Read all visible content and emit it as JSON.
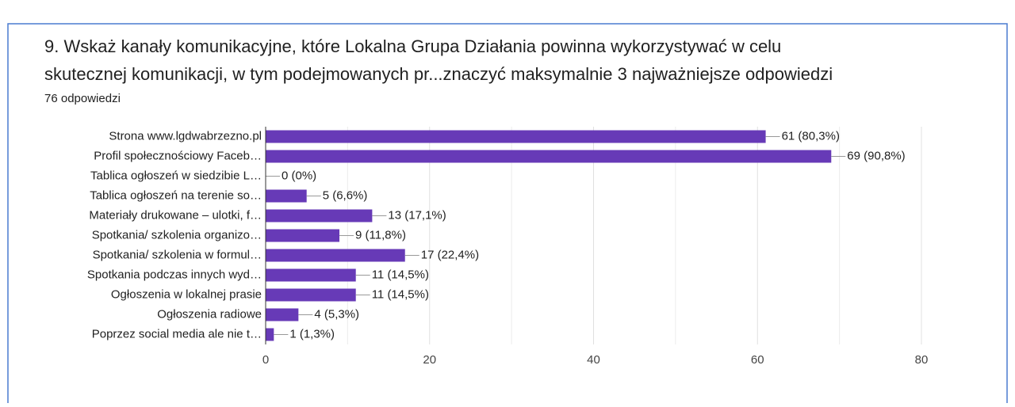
{
  "header": {
    "title_line1": "9. Wskaż kanały komunikacyjne, które Lokalna Grupa Działania powinna wykorzystywać w celu",
    "title_line2": "skutecznej komunikacji, w tym podejmowanych pr...znaczyć maksymalnie 3 najważniejsze odpowiedzi",
    "responses": "76 odpowiedzi"
  },
  "chart_data": {
    "type": "bar",
    "orientation": "horizontal",
    "categories": [
      "Strona www.lgdwabrzezno.pl",
      "Profil społecznościowy Faceb…",
      "Tablica ogłoszeń w siedzibie L…",
      "Tablica ogłoszeń na terenie so…",
      "Materiały drukowane – ulotki, f…",
      "Spotkania/ szkolenia organizo…",
      "Spotkania/ szkolenia w formul…",
      "Spotkania podczas innych wyd…",
      "Ogłoszenia w lokalnej prasie",
      "Ogłoszenia radiowe",
      "Poprzez social media ale nie t…"
    ],
    "values": [
      61,
      69,
      0,
      5,
      13,
      9,
      17,
      11,
      11,
      4,
      1
    ],
    "value_labels": [
      "61 (80,3%)",
      "69 (90,8%)",
      "0 (0%)",
      "5 (6,6%)",
      "13 (17,1%)",
      "9 (11,8%)",
      "17 (22,4%)",
      "11 (14,5%)",
      "11 (14,5%)",
      "4 (5,3%)",
      "1 (1,3%)"
    ],
    "color": "#673ab7",
    "xlim": [
      0,
      80
    ],
    "xticks": [
      0,
      20,
      40,
      60,
      80
    ],
    "minor_gridlines": [
      10,
      30,
      50,
      70
    ],
    "grid": true
  }
}
